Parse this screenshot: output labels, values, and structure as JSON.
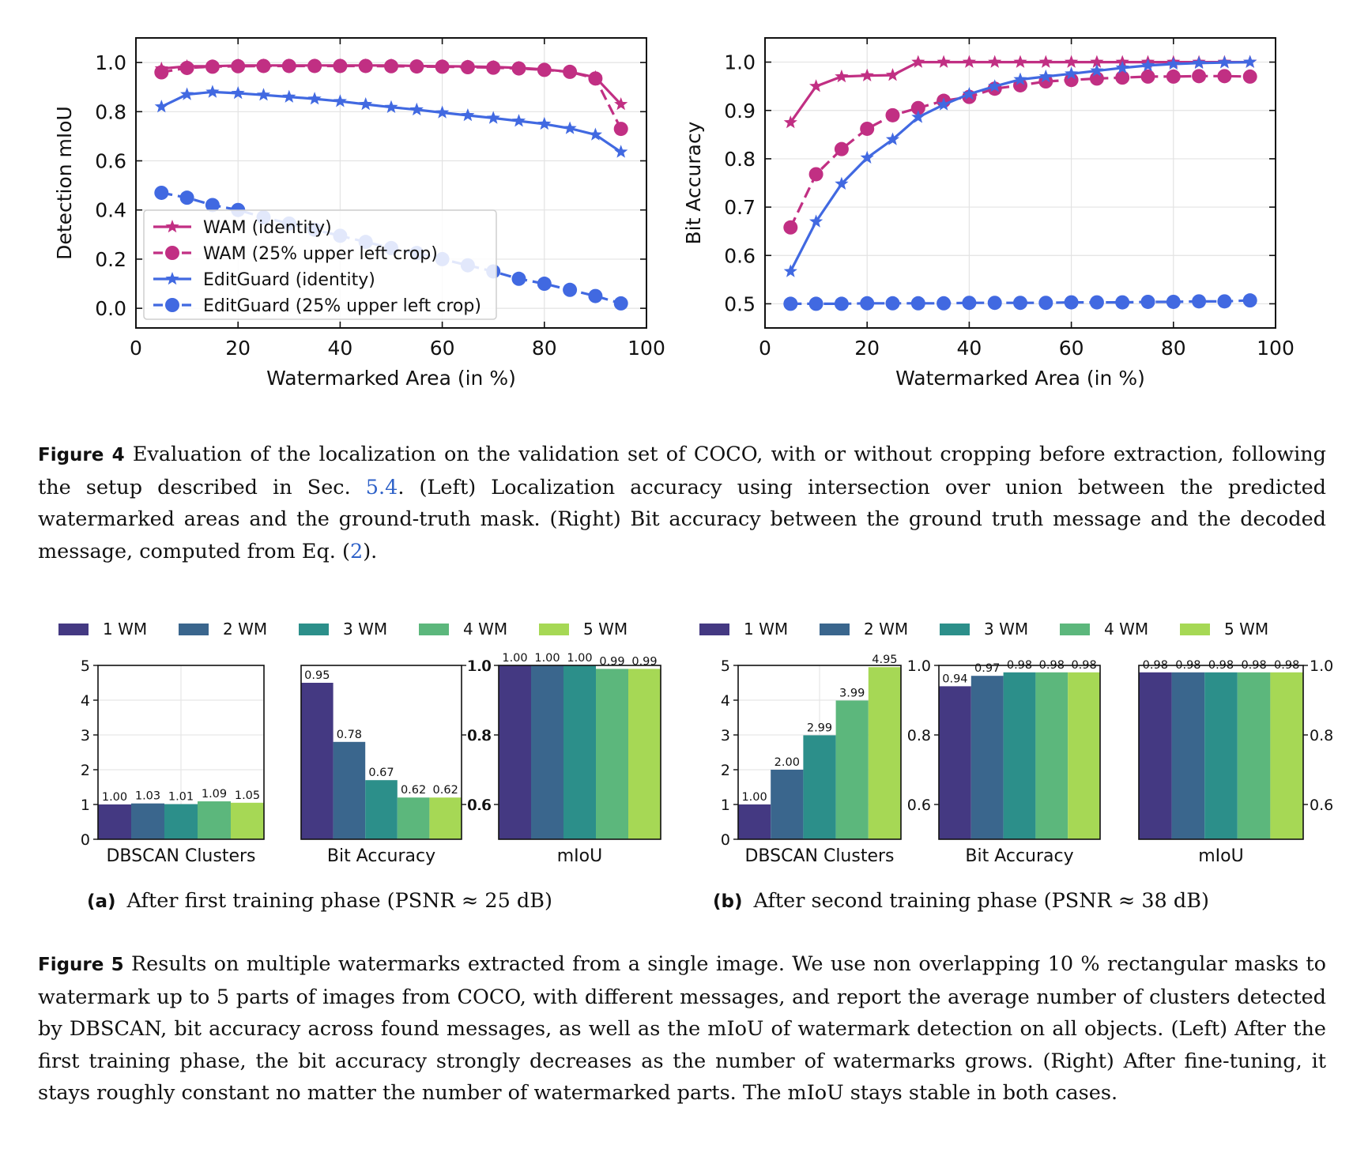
{
  "colors": {
    "wam": "#c12f83",
    "editguard": "#4169e1",
    "wm1": "#443982",
    "wm2": "#3a668d",
    "wm3": "#2c8f8a",
    "wm4": "#5cb77c",
    "wm5": "#a6d855"
  },
  "figure4": {
    "caption_label": "Figure 4",
    "caption_part1": " Evaluation of the localization on the validation set of COCO, with or without cropping before extraction, following the setup described in Sec. ",
    "caption_ref1": "5.4",
    "caption_part2": ". (Left) Localization accuracy using intersection over union between the predicted watermarked areas and the ground-truth mask. (Right) Bit accuracy between the ground truth message and the decoded message, computed from Eq. (",
    "caption_ref2": "2",
    "caption_part3": ")."
  },
  "figure5": {
    "caption_label": "Figure 5",
    "caption_text": " Results on multiple watermarks extracted from a single image. We use non overlapping 10 % rectangular masks to watermark up to 5 parts of images from COCO, with different messages, and report the average number of clusters detected by DBSCAN, bit accuracy across found messages, as well as the mIoU of watermark detection on all objects. (Left) After the first training phase, the bit accuracy strongly decreases as the number of watermarks grows. (Right) After fine-tuning, it stays roughly constant no matter the number of watermarked parts. The mIoU stays stable in both cases.",
    "sub_a_label": "(a)",
    "sub_a_text": "After first training phase (PSNR ≈ 25 dB)",
    "sub_b_label": "(b)",
    "sub_b_text": "After second training phase (PSNR ≈ 38 dB)"
  },
  "chart_data": [
    {
      "type": "line",
      "xlabel": "Watermarked Area (in %)",
      "ylabel": "Detection mIoU",
      "xlim": [
        0,
        100
      ],
      "ylim": [
        -0.08,
        1.1
      ],
      "xticks": [
        0,
        20,
        40,
        60,
        80,
        100
      ],
      "yticks": [
        0.0,
        0.2,
        0.4,
        0.6,
        0.8,
        1.0
      ],
      "grid": true,
      "legend": "lower left",
      "x": [
        5,
        10,
        15,
        20,
        25,
        30,
        35,
        40,
        45,
        50,
        55,
        60,
        65,
        70,
        75,
        80,
        85,
        90,
        95
      ],
      "series": [
        {
          "name": "WAM (identity)",
          "color": "wam",
          "marker": "star",
          "dashed": false,
          "values": [
            0.975,
            0.985,
            0.985,
            0.988,
            0.988,
            0.988,
            0.988,
            0.988,
            0.988,
            0.988,
            0.986,
            0.985,
            0.984,
            0.982,
            0.978,
            0.972,
            0.962,
            0.94,
            0.83
          ]
        },
        {
          "name": "WAM (25% upper left crop)",
          "color": "wam",
          "marker": "circle",
          "dashed": true,
          "values": [
            0.96,
            0.978,
            0.983,
            0.985,
            0.986,
            0.986,
            0.986,
            0.986,
            0.986,
            0.985,
            0.984,
            0.983,
            0.981,
            0.979,
            0.976,
            0.97,
            0.962,
            0.935,
            0.73
          ]
        },
        {
          "name": "EditGuard (identity)",
          "color": "editguard",
          "marker": "star",
          "dashed": false,
          "values": [
            0.82,
            0.87,
            0.88,
            0.875,
            0.868,
            0.86,
            0.852,
            0.842,
            0.83,
            0.818,
            0.808,
            0.796,
            0.785,
            0.774,
            0.762,
            0.75,
            0.732,
            0.706,
            0.636
          ]
        },
        {
          "name": "EditGuard (25% upper left crop)",
          "color": "editguard",
          "marker": "circle",
          "dashed": true,
          "values": [
            0.47,
            0.45,
            0.42,
            0.4,
            0.37,
            0.345,
            0.32,
            0.295,
            0.27,
            0.245,
            0.225,
            0.2,
            0.175,
            0.15,
            0.12,
            0.1,
            0.075,
            0.05,
            0.02
          ]
        }
      ]
    },
    {
      "type": "line",
      "xlabel": "Watermarked Area (in %)",
      "ylabel": "Bit Accuracy",
      "xlim": [
        0,
        100
      ],
      "ylim": [
        0.45,
        1.05
      ],
      "xticks": [
        0,
        20,
        40,
        60,
        80,
        100
      ],
      "yticks": [
        0.5,
        0.6,
        0.7,
        0.8,
        0.9,
        1.0
      ],
      "grid": true,
      "x": [
        5,
        10,
        15,
        20,
        25,
        30,
        35,
        40,
        45,
        50,
        55,
        60,
        65,
        70,
        75,
        80,
        85,
        90,
        95
      ],
      "series": [
        {
          "color": "wam",
          "marker": "star",
          "dashed": false,
          "values": [
            0.875,
            0.95,
            0.97,
            0.972,
            0.973,
            1.0,
            1.0,
            1.0,
            1.0,
            1.0,
            1.0,
            1.0,
            1.0,
            1.0,
            1.0,
            1.0,
            1.0,
            1.0,
            1.0
          ]
        },
        {
          "color": "wam",
          "marker": "circle",
          "dashed": true,
          "values": [
            0.658,
            0.768,
            0.82,
            0.862,
            0.89,
            0.905,
            0.92,
            0.928,
            0.945,
            0.952,
            0.96,
            0.963,
            0.966,
            0.968,
            0.97,
            0.97,
            0.971,
            0.971,
            0.97
          ]
        },
        {
          "color": "editguard",
          "marker": "star",
          "dashed": false,
          "values": [
            0.567,
            0.67,
            0.748,
            0.802,
            0.84,
            0.886,
            0.912,
            0.934,
            0.95,
            0.964,
            0.97,
            0.976,
            0.982,
            0.988,
            0.993,
            0.996,
            0.998,
            0.999,
            1.0
          ]
        },
        {
          "color": "editguard",
          "marker": "circle",
          "dashed": true,
          "values": [
            0.5,
            0.5,
            0.5,
            0.501,
            0.501,
            0.501,
            0.501,
            0.502,
            0.502,
            0.502,
            0.502,
            0.503,
            0.503,
            0.503,
            0.504,
            0.504,
            0.505,
            0.505,
            0.507
          ]
        }
      ]
    },
    {
      "type": "bar",
      "group": "a",
      "legend_labels": [
        "1 WM",
        "2 WM",
        "3 WM",
        "4 WM",
        "5 WM"
      ],
      "panels": [
        {
          "xlabel": "DBSCAN Clusters",
          "ylim": [
            0,
            5
          ],
          "yticks": [
            0,
            1,
            2,
            3,
            4,
            5
          ],
          "tick_side": "left",
          "grid": true,
          "values": [
            1.0,
            1.03,
            1.01,
            1.09,
            1.05
          ],
          "labels": [
            "1.00",
            "1.03",
            "1.01",
            "1.09",
            "1.05"
          ]
        },
        {
          "xlabel": "Bit Accuracy",
          "ylim": [
            0.5,
            1.0
          ],
          "yticks": [
            0.6,
            0.8,
            1.0
          ],
          "tick_side": "right",
          "values": [
            0.95,
            0.78,
            0.67,
            0.62,
            0.62
          ],
          "labels": [
            "0.95",
            "0.78",
            "0.67",
            "0.62",
            "0.62"
          ]
        },
        {
          "xlabel": "mIoU",
          "ylim": [
            0.5,
            1.0
          ],
          "yticks": [
            0.6,
            0.8,
            1.0
          ],
          "tick_side": "left",
          "values": [
            1.0,
            1.0,
            1.0,
            0.99,
            0.99
          ],
          "labels": [
            "1.00",
            "1.00",
            "1.00",
            "0.99",
            "0.99"
          ]
        }
      ]
    },
    {
      "type": "bar",
      "group": "b",
      "legend_labels": [
        "1 WM",
        "2 WM",
        "3 WM",
        "4 WM",
        "5 WM"
      ],
      "panels": [
        {
          "xlabel": "DBSCAN Clusters",
          "ylim": [
            0,
            5
          ],
          "yticks": [
            0,
            1,
            2,
            3,
            4,
            5
          ],
          "tick_side": "left",
          "grid": true,
          "values": [
            1.0,
            2.0,
            2.99,
            3.99,
            4.95
          ],
          "labels": [
            "1.00",
            "2.00",
            "2.99",
            "3.99",
            "4.95"
          ]
        },
        {
          "xlabel": "Bit Accuracy",
          "ylim": [
            0.5,
            1.0
          ],
          "yticks": [
            0.6,
            0.8,
            1.0
          ],
          "tick_side": "left",
          "values": [
            0.94,
            0.97,
            0.98,
            0.98,
            0.98
          ],
          "labels": [
            "0.94",
            "0.97",
            "0.98",
            "0.98",
            "0.98"
          ]
        },
        {
          "xlabel": "mIoU",
          "ylim": [
            0.5,
            1.0
          ],
          "yticks": [
            0.6,
            0.8,
            1.0
          ],
          "tick_side": "right",
          "values": [
            0.98,
            0.98,
            0.98,
            0.98,
            0.98
          ],
          "labels": [
            "0.98",
            "0.98",
            "0.98",
            "0.98",
            "0.98"
          ]
        }
      ]
    }
  ]
}
